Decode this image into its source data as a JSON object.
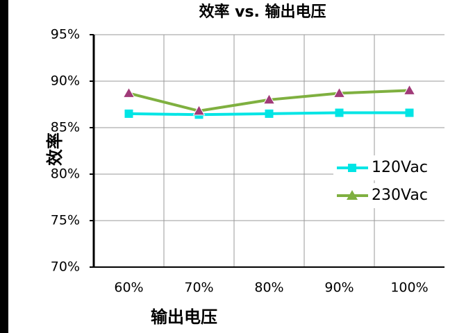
{
  "chart_data": {
    "type": "line",
    "title": "效率 vs. 输出电压",
    "y_label": "效率",
    "x_label": "输出电压",
    "categories": [
      "60%",
      "70%",
      "80%",
      "90%",
      "100%"
    ],
    "series": [
      {
        "name": "120Vac",
        "color": "#00e5e5",
        "marker": "square",
        "values": [
          86.5,
          86.4,
          86.5,
          86.6,
          86.6
        ]
      },
      {
        "name": "230Vac",
        "color": "#7fb040",
        "marker": "triangle",
        "values": [
          88.7,
          86.8,
          88.0,
          88.7,
          89.0
        ]
      }
    ],
    "ylim": [
      70,
      95
    ],
    "yticks": [
      {
        "value": 70,
        "label": "70%"
      },
      {
        "value": 75,
        "label": "75%"
      },
      {
        "value": 80,
        "label": "80%"
      },
      {
        "value": 85,
        "label": "85%"
      },
      {
        "value": 90,
        "label": "90%"
      },
      {
        "value": 95,
        "label": "95%"
      }
    ],
    "grid": true,
    "legend": "right"
  }
}
